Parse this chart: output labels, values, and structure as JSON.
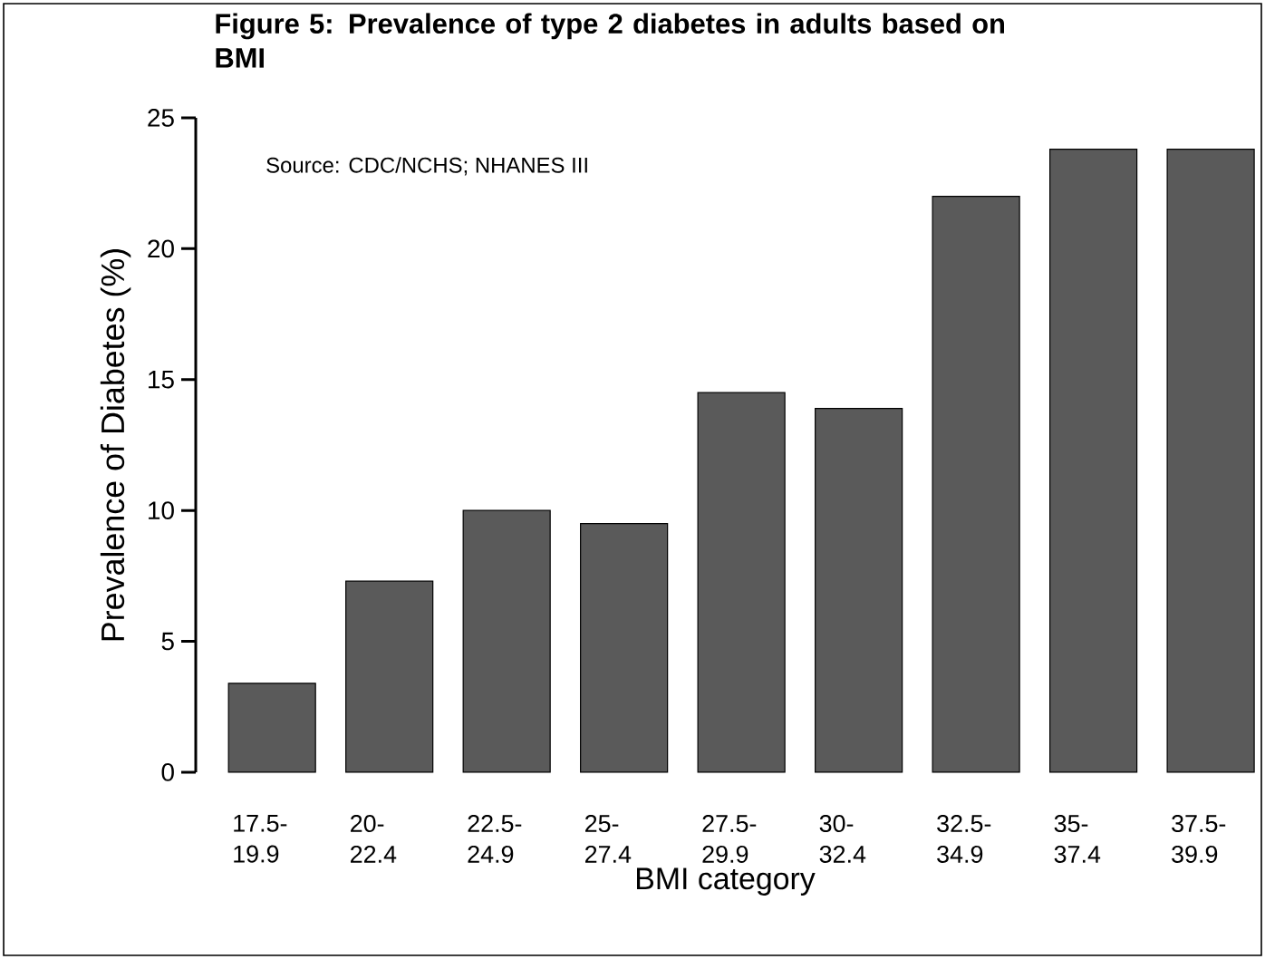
{
  "chart_data": {
    "type": "bar",
    "title": "Figure 5: Prevalence of type 2 diabetes in adults based on BMI",
    "annotations": [
      "Source: CDC/NCHS; NHANES III"
    ],
    "xlabel": "BMI category",
    "ylabel": "Prevalence of Diabetes (%)",
    "categories": [
      "17.5-19.9",
      "20-22.4",
      "22.5-24.9",
      "25-27.4",
      "27.5-29.9",
      "30-32.4",
      "32.5-34.9",
      "35-37.4",
      "37.5-39.9"
    ],
    "values": [
      3.4,
      7.3,
      10,
      9.5,
      14.5,
      13.9,
      22,
      23.8,
      23.8
    ],
    "color": "#5a5a5a",
    "ylim": [
      0,
      25
    ],
    "yticks": [
      0,
      5,
      10,
      15,
      20,
      25
    ],
    "grid": false
  }
}
